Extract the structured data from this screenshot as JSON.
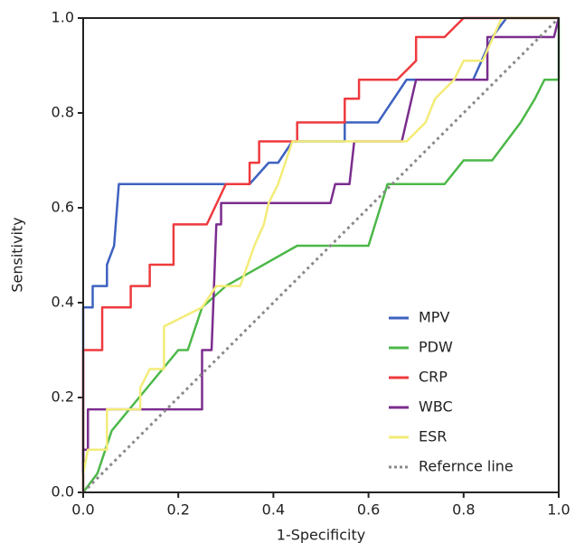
{
  "chart_data": {
    "type": "line",
    "xlabel": "1-Specificity",
    "ylabel": "Sensitivity",
    "xlim": [
      0,
      1
    ],
    "ylim": [
      0,
      1
    ],
    "xticks": [
      {
        "value": 0,
        "label": "0.0"
      },
      0.2,
      0.4,
      0.6,
      0.8,
      {
        "value": 1,
        "label": "1.0"
      }
    ],
    "yticks": [
      {
        "value": 0,
        "label": "0.0"
      },
      0.2,
      0.4,
      0.6,
      0.8,
      {
        "value": 1,
        "label": "1.0"
      }
    ],
    "legend": "lower right",
    "series": [
      {
        "name": "MPV",
        "color": "#3e62c0",
        "x": [
          0,
          0,
          0.02,
          0.02,
          0.05,
          0.05,
          0.065,
          0.075,
          0.35,
          0.39,
          0.41,
          0.44,
          0.55,
          0.55,
          0.62,
          0.68,
          0.82,
          0.86,
          0.89,
          1.0
        ],
        "values": [
          0,
          0.39,
          0.39,
          0.435,
          0.435,
          0.48,
          0.52,
          0.65,
          0.65,
          0.695,
          0.695,
          0.74,
          0.74,
          0.78,
          0.78,
          0.87,
          0.87,
          0.96,
          1.0,
          1.0
        ]
      },
      {
        "name": "PDW",
        "color": "#4cb848",
        "x": [
          0,
          0.03,
          0.06,
          0.2,
          0.22,
          0.25,
          0.3,
          0.45,
          0.6,
          0.64,
          0.76,
          0.8,
          0.86,
          0.92,
          0.95,
          0.97,
          1.0,
          1.0
        ],
        "values": [
          0,
          0.04,
          0.13,
          0.3,
          0.3,
          0.39,
          0.435,
          0.52,
          0.52,
          0.65,
          0.65,
          0.7,
          0.7,
          0.78,
          0.83,
          0.87,
          0.87,
          1.0
        ]
      },
      {
        "name": "CRP",
        "color": "#ee3a3e",
        "x": [
          0,
          0,
          0.04,
          0.04,
          0.1,
          0.1,
          0.14,
          0.14,
          0.19,
          0.19,
          0.26,
          0.3,
          0.35,
          0.35,
          0.37,
          0.37,
          0.45,
          0.45,
          0.55,
          0.55,
          0.58,
          0.58,
          0.66,
          0.7,
          0.7,
          0.76,
          0.8,
          1.0
        ],
        "values": [
          0,
          0.3,
          0.3,
          0.39,
          0.39,
          0.435,
          0.435,
          0.48,
          0.48,
          0.565,
          0.565,
          0.65,
          0.65,
          0.695,
          0.695,
          0.74,
          0.74,
          0.78,
          0.78,
          0.83,
          0.83,
          0.87,
          0.87,
          0.91,
          0.96,
          0.96,
          1.0,
          1.0
        ]
      },
      {
        "name": "WBC",
        "color": "#7b2d8e",
        "x": [
          0,
          0,
          0.01,
          0.01,
          0.25,
          0.25,
          0.27,
          0.28,
          0.29,
          0.29,
          0.52,
          0.53,
          0.56,
          0.57,
          0.67,
          0.7,
          0.85,
          0.85,
          0.99,
          1.0
        ],
        "values": [
          0,
          0.09,
          0.09,
          0.175,
          0.175,
          0.3,
          0.3,
          0.565,
          0.565,
          0.61,
          0.61,
          0.65,
          0.65,
          0.74,
          0.74,
          0.87,
          0.87,
          0.96,
          0.96,
          1.0
        ]
      },
      {
        "name": "ESR",
        "color": "#f3ec78",
        "x": [
          0,
          0,
          0.01,
          0.05,
          0.05,
          0.12,
          0.12,
          0.14,
          0.17,
          0.17,
          0.25,
          0.28,
          0.33,
          0.36,
          0.38,
          0.39,
          0.41,
          0.44,
          0.68,
          0.72,
          0.74,
          0.78,
          0.8,
          0.84,
          0.88,
          1.0
        ],
        "values": [
          0,
          0.04,
          0.09,
          0.09,
          0.175,
          0.175,
          0.22,
          0.26,
          0.26,
          0.35,
          0.39,
          0.435,
          0.435,
          0.52,
          0.565,
          0.61,
          0.65,
          0.74,
          0.74,
          0.78,
          0.83,
          0.87,
          0.91,
          0.91,
          1.0,
          1.0
        ]
      },
      {
        "name": "Refernce line",
        "color": "#8a8a8a",
        "dash": "dotted",
        "x": [
          0,
          1
        ],
        "values": [
          0,
          1
        ]
      }
    ]
  }
}
